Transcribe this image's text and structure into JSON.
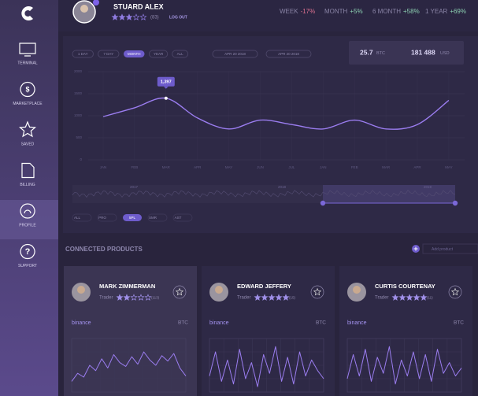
{
  "sidebar": {
    "items": [
      "TERMINAL",
      "MARKETPLACE",
      "SAVED",
      "BILLING",
      "PROFILE",
      "SUPPORT"
    ],
    "active": "PROFILE"
  },
  "header": {
    "name": "STUARD ALEX",
    "rating": 3,
    "rating_count": "(83)",
    "logout": "LOG OUT",
    "stats": [
      {
        "label": "WEEK",
        "value": "-17%"
      },
      {
        "label": "MONTH",
        "value": "+5%"
      },
      {
        "label": "6 MONTH",
        "value": "+58%"
      },
      {
        "label": "1 YEAR",
        "value": "+69%"
      }
    ]
  },
  "controls": {
    "periods": [
      "1 DAY",
      "7 DAY",
      "MONTH",
      "YEAR",
      "ALL"
    ],
    "active": "MONTH",
    "dates": [
      "APR 20 2018",
      "APR 20 2018"
    ]
  },
  "balance": {
    "btc": "25.7",
    "btc_unit": "BTC",
    "usd": "181 488",
    "usd_unit": "USD"
  },
  "chart_data": {
    "type": "line",
    "categories": [
      "JAN",
      "FEB",
      "MAR",
      "APR",
      "MAY",
      "JUN",
      "JUL",
      "JAN",
      "FEB",
      "MAR",
      "APR",
      "MAY"
    ],
    "series": [
      {
        "color": "#9b7df0",
        "values": [
          980,
          1180,
          1397,
          950,
          700,
          900,
          800,
          700,
          900,
          700,
          800,
          1350
        ],
        "value_labels": [
          null,
          null,
          "1,397",
          null,
          null,
          null,
          null,
          null,
          null,
          null,
          null,
          null
        ]
      }
    ],
    "ylim": [
      0,
      2000
    ],
    "yticks": [
      0,
      500,
      1000,
      1500,
      2000
    ],
    "grid": true
  },
  "range": {
    "years": [
      "2017",
      "2018",
      "2019"
    ],
    "filters": [
      "ALL",
      "PRO",
      "5PL",
      "SMR",
      "AST"
    ],
    "active": "5PL"
  },
  "products": {
    "title": "CONNECTED PRODUCTS",
    "add": "Add product",
    "cards": [
      {
        "name": "MARK ZIMMERMAN",
        "role": "Trader",
        "rating": 2,
        "count": "(113)",
        "exchange": "binance",
        "asset": "BTC",
        "ylim": [
          0,
          100
        ],
        "values": [
          20,
          35,
          28,
          50,
          40,
          62,
          45,
          70,
          55,
          48,
          66,
          52,
          75,
          60,
          50,
          68,
          58,
          72,
          45,
          30
        ]
      },
      {
        "name": "EDWARD JEFFERY",
        "role": "Trader",
        "rating": 5,
        "count": "(15)",
        "exchange": "binance",
        "asset": "BTC",
        "ylim": [
          0,
          100
        ],
        "values": [
          30,
          75,
          20,
          60,
          15,
          80,
          25,
          55,
          10,
          70,
          35,
          85,
          20,
          65,
          15,
          75,
          30,
          60,
          40,
          25
        ]
      },
      {
        "name": "CURTIS COURTENAY",
        "role": "Trader",
        "rating": 5,
        "count": "(11)",
        "exchange": "binance",
        "asset": "BTC",
        "ylim": [
          0,
          100
        ],
        "values": [
          25,
          70,
          30,
          80,
          20,
          65,
          35,
          85,
          15,
          60,
          30,
          75,
          25,
          70,
          20,
          80,
          35,
          55,
          30,
          45
        ]
      }
    ]
  }
}
